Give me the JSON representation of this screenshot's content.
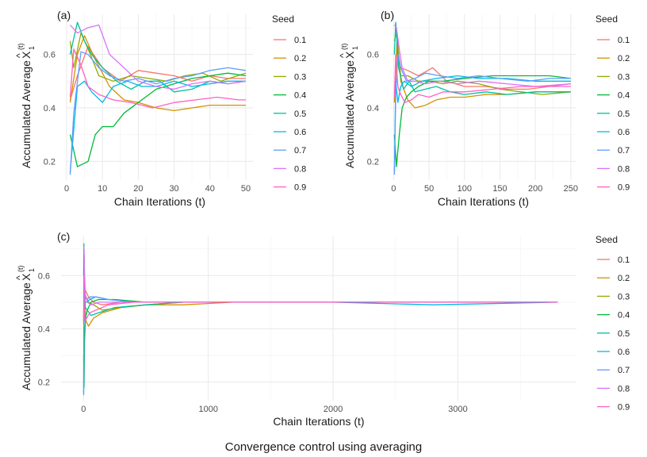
{
  "figure": {
    "caption": "Convergence control using averaging",
    "ylabel_prefix": "Accumulated Average",
    "ylabel_symbol": "X",
    "ylabel_sup": "(t)",
    "ylabel_sub": "1",
    "ylabel_hat": "^",
    "legend_title": "Seed",
    "series_colors": [
      "#F8766D",
      "#D39200",
      "#93AA00",
      "#00BA38",
      "#00C19F",
      "#00B9E3",
      "#619CFF",
      "#DB72FB",
      "#FF61C3"
    ]
  },
  "chart_data": [
    {
      "panel_label": "(a)",
      "type": "line",
      "xlabel": "Chain Iterations (t)",
      "xlim": [
        0,
        52
      ],
      "ylim": [
        0.13,
        0.75
      ],
      "xticks": [
        0,
        10,
        20,
        30,
        40,
        50
      ],
      "yticks": [
        0.2,
        0.4,
        0.6
      ],
      "series": [
        {
          "name": "0.1",
          "x": [
            1,
            3,
            6,
            10,
            15,
            20,
            25,
            30,
            35,
            40,
            45,
            50
          ],
          "values": [
            0.43,
            0.52,
            0.63,
            0.55,
            0.5,
            0.54,
            0.53,
            0.52,
            0.5,
            0.52,
            0.51,
            0.51
          ]
        },
        {
          "name": "0.2",
          "x": [
            1,
            3,
            5,
            8,
            12,
            16,
            20,
            25,
            30,
            35,
            40,
            45,
            50
          ],
          "values": [
            0.42,
            0.6,
            0.67,
            0.58,
            0.48,
            0.43,
            0.42,
            0.4,
            0.39,
            0.4,
            0.41,
            0.41,
            0.41
          ]
        },
        {
          "name": "0.3",
          "x": [
            1,
            2,
            4,
            6,
            9,
            13,
            18,
            23,
            28,
            33,
            38,
            43,
            50
          ],
          "values": [
            0.65,
            0.55,
            0.68,
            0.62,
            0.52,
            0.5,
            0.52,
            0.51,
            0.5,
            0.52,
            0.53,
            0.5,
            0.53
          ]
        },
        {
          "name": "0.4",
          "x": [
            1,
            3,
            6,
            8,
            10,
            13,
            16,
            20,
            25,
            30,
            35,
            40,
            45,
            50
          ],
          "values": [
            0.3,
            0.18,
            0.2,
            0.3,
            0.33,
            0.33,
            0.38,
            0.42,
            0.47,
            0.49,
            0.51,
            0.52,
            0.53,
            0.52
          ]
        },
        {
          "name": "0.5",
          "x": [
            1,
            3,
            5,
            7,
            10,
            14,
            18,
            22,
            26,
            30,
            35,
            40,
            45,
            50
          ],
          "values": [
            0.6,
            0.72,
            0.65,
            0.6,
            0.55,
            0.5,
            0.47,
            0.5,
            0.5,
            0.46,
            0.47,
            0.5,
            0.49,
            0.5
          ]
        },
        {
          "name": "0.6",
          "x": [
            1,
            3,
            5,
            7,
            10,
            13,
            17,
            21,
            25,
            30,
            35,
            40,
            45,
            50
          ],
          "values": [
            0.16,
            0.48,
            0.5,
            0.46,
            0.42,
            0.48,
            0.5,
            0.48,
            0.48,
            0.5,
            0.48,
            0.49,
            0.5,
            0.5
          ]
        },
        {
          "name": "0.7",
          "x": [
            1,
            2,
            4,
            6,
            9,
            12,
            16,
            20,
            25,
            30,
            35,
            40,
            45,
            50
          ],
          "values": [
            0.15,
            0.38,
            0.61,
            0.6,
            0.55,
            0.52,
            0.5,
            0.51,
            0.49,
            0.51,
            0.52,
            0.54,
            0.55,
            0.54
          ]
        },
        {
          "name": "0.8",
          "x": [
            1,
            3,
            6,
            9,
            12,
            16,
            20,
            25,
            30,
            35,
            40,
            45,
            50
          ],
          "values": [
            0.71,
            0.68,
            0.7,
            0.71,
            0.6,
            0.55,
            0.5,
            0.48,
            0.47,
            0.49,
            0.5,
            0.49,
            0.5
          ]
        },
        {
          "name": "0.9",
          "x": [
            1,
            2,
            4,
            6,
            9,
            13,
            18,
            24,
            30,
            36,
            42,
            48,
            50
          ],
          "values": [
            0.44,
            0.62,
            0.56,
            0.48,
            0.45,
            0.43,
            0.42,
            0.4,
            0.42,
            0.43,
            0.44,
            0.43,
            0.43
          ]
        }
      ]
    },
    {
      "panel_label": "(b)",
      "type": "line",
      "xlabel": "Chain Iterations (t)",
      "xlim": [
        -5,
        258
      ],
      "ylim": [
        0.13,
        0.75
      ],
      "xticks": [
        0,
        50,
        100,
        150,
        200,
        250
      ],
      "yticks": [
        0.2,
        0.4,
        0.6
      ],
      "series": [
        {
          "name": "0.1",
          "x": [
            1,
            5,
            10,
            20,
            35,
            55,
            75,
            100,
            130,
            160,
            190,
            220,
            250
          ],
          "values": [
            0.43,
            0.63,
            0.55,
            0.54,
            0.52,
            0.55,
            0.5,
            0.48,
            0.48,
            0.47,
            0.47,
            0.48,
            0.49
          ]
        },
        {
          "name": "0.2",
          "x": [
            1,
            5,
            10,
            20,
            30,
            45,
            60,
            80,
            100,
            130,
            160,
            200,
            250
          ],
          "values": [
            0.42,
            0.67,
            0.5,
            0.43,
            0.4,
            0.41,
            0.43,
            0.44,
            0.44,
            0.45,
            0.45,
            0.46,
            0.46
          ]
        },
        {
          "name": "0.3",
          "x": [
            1,
            4,
            10,
            20,
            35,
            50,
            70,
            90,
            120,
            150,
            180,
            210,
            250
          ],
          "values": [
            0.65,
            0.68,
            0.52,
            0.52,
            0.5,
            0.5,
            0.49,
            0.5,
            0.49,
            0.47,
            0.46,
            0.45,
            0.46
          ]
        },
        {
          "name": "0.4",
          "x": [
            1,
            4,
            8,
            12,
            18,
            25,
            35,
            50,
            70,
            100,
            140,
            180,
            220,
            250
          ],
          "values": [
            0.3,
            0.18,
            0.3,
            0.4,
            0.44,
            0.46,
            0.48,
            0.5,
            0.5,
            0.51,
            0.52,
            0.52,
            0.52,
            0.51
          ]
        },
        {
          "name": "0.5",
          "x": [
            1,
            3,
            7,
            14,
            22,
            30,
            45,
            60,
            80,
            100,
            130,
            160,
            200,
            250
          ],
          "values": [
            0.6,
            0.72,
            0.55,
            0.47,
            0.5,
            0.46,
            0.47,
            0.48,
            0.46,
            0.45,
            0.46,
            0.45,
            0.46,
            0.46
          ]
        },
        {
          "name": "0.6",
          "x": [
            1,
            3,
            6,
            10,
            15,
            25,
            40,
            60,
            90,
            120,
            160,
            200,
            250
          ],
          "values": [
            0.16,
            0.5,
            0.42,
            0.48,
            0.5,
            0.48,
            0.5,
            0.51,
            0.52,
            0.51,
            0.51,
            0.5,
            0.5
          ]
        },
        {
          "name": "0.7",
          "x": [
            1,
            3,
            6,
            10,
            18,
            30,
            45,
            65,
            90,
            120,
            150,
            190,
            220,
            250
          ],
          "values": [
            0.15,
            0.45,
            0.6,
            0.55,
            0.5,
            0.51,
            0.53,
            0.52,
            0.51,
            0.52,
            0.51,
            0.5,
            0.51,
            0.51
          ]
        },
        {
          "name": "0.8",
          "x": [
            1,
            4,
            8,
            12,
            20,
            30,
            45,
            65,
            90,
            120,
            160,
            200,
            250
          ],
          "values": [
            0.71,
            0.7,
            0.62,
            0.55,
            0.5,
            0.5,
            0.49,
            0.5,
            0.49,
            0.5,
            0.49,
            0.48,
            0.49
          ]
        },
        {
          "name": "0.9",
          "x": [
            1,
            3,
            6,
            10,
            16,
            25,
            35,
            50,
            70,
            100,
            140,
            180,
            220,
            250
          ],
          "values": [
            0.44,
            0.6,
            0.48,
            0.45,
            0.42,
            0.43,
            0.45,
            0.44,
            0.46,
            0.46,
            0.47,
            0.48,
            0.48,
            0.48
          ]
        }
      ]
    },
    {
      "panel_label": "(c)",
      "type": "line",
      "xlabel": "Chain Iterations (t)",
      "xlim": [
        -180,
        3950
      ],
      "ylim": [
        0.13,
        0.75
      ],
      "xticks": [
        0,
        1000,
        2000,
        3000
      ],
      "yticks": [
        0.2,
        0.4,
        0.6
      ],
      "series": [
        {
          "name": "0.1",
          "x": [
            1,
            5,
            10,
            20,
            40,
            80,
            150,
            300,
            500,
            800,
            1200,
            2000,
            2800,
            3800
          ],
          "values": [
            0.43,
            0.63,
            0.55,
            0.54,
            0.52,
            0.5,
            0.49,
            0.5,
            0.5,
            0.5,
            0.5,
            0.5,
            0.5,
            0.5
          ]
        },
        {
          "name": "0.2",
          "x": [
            1,
            5,
            10,
            20,
            40,
            80,
            150,
            300,
            500,
            800,
            1200,
            2000,
            2800,
            3800
          ],
          "values": [
            0.42,
            0.67,
            0.5,
            0.43,
            0.41,
            0.44,
            0.46,
            0.48,
            0.49,
            0.49,
            0.5,
            0.5,
            0.5,
            0.5
          ]
        },
        {
          "name": "0.3",
          "x": [
            1,
            4,
            10,
            20,
            40,
            80,
            150,
            300,
            500,
            800,
            1200,
            2000,
            2800,
            3800
          ],
          "values": [
            0.65,
            0.68,
            0.52,
            0.52,
            0.5,
            0.49,
            0.47,
            0.48,
            0.49,
            0.5,
            0.5,
            0.5,
            0.5,
            0.5
          ]
        },
        {
          "name": "0.4",
          "x": [
            1,
            4,
            8,
            15,
            30,
            60,
            120,
            250,
            500,
            800,
            1200,
            2000,
            2800,
            3800
          ],
          "values": [
            0.3,
            0.18,
            0.35,
            0.44,
            0.47,
            0.5,
            0.51,
            0.51,
            0.5,
            0.5,
            0.5,
            0.5,
            0.5,
            0.5
          ]
        },
        {
          "name": "0.5",
          "x": [
            1,
            3,
            7,
            15,
            30,
            60,
            120,
            250,
            500,
            800,
            1200,
            2000,
            2800,
            3800
          ],
          "values": [
            0.6,
            0.72,
            0.55,
            0.48,
            0.47,
            0.45,
            0.46,
            0.48,
            0.49,
            0.5,
            0.5,
            0.5,
            0.5,
            0.5
          ]
        },
        {
          "name": "0.6",
          "x": [
            1,
            3,
            6,
            12,
            25,
            50,
            100,
            200,
            400,
            800,
            1200,
            2000,
            2800,
            3800
          ],
          "values": [
            0.16,
            0.5,
            0.45,
            0.5,
            0.5,
            0.51,
            0.52,
            0.51,
            0.5,
            0.5,
            0.5,
            0.5,
            0.49,
            0.5
          ]
        },
        {
          "name": "0.7",
          "x": [
            1,
            3,
            6,
            12,
            25,
            50,
            100,
            200,
            400,
            800,
            1200,
            2000,
            2800,
            3800
          ],
          "values": [
            0.15,
            0.45,
            0.58,
            0.52,
            0.51,
            0.52,
            0.52,
            0.51,
            0.5,
            0.5,
            0.5,
            0.5,
            0.5,
            0.5
          ]
        },
        {
          "name": "0.8",
          "x": [
            1,
            4,
            8,
            15,
            30,
            60,
            120,
            250,
            500,
            800,
            1200,
            2000,
            2800,
            3800
          ],
          "values": [
            0.71,
            0.7,
            0.6,
            0.53,
            0.5,
            0.49,
            0.5,
            0.5,
            0.5,
            0.5,
            0.5,
            0.5,
            0.5,
            0.5
          ]
        },
        {
          "name": "0.9",
          "x": [
            1,
            3,
            6,
            12,
            25,
            50,
            100,
            200,
            400,
            800,
            1200,
            2000,
            2800,
            3800
          ],
          "values": [
            0.44,
            0.6,
            0.48,
            0.43,
            0.44,
            0.46,
            0.47,
            0.49,
            0.5,
            0.5,
            0.5,
            0.5,
            0.5,
            0.5
          ]
        }
      ]
    }
  ]
}
